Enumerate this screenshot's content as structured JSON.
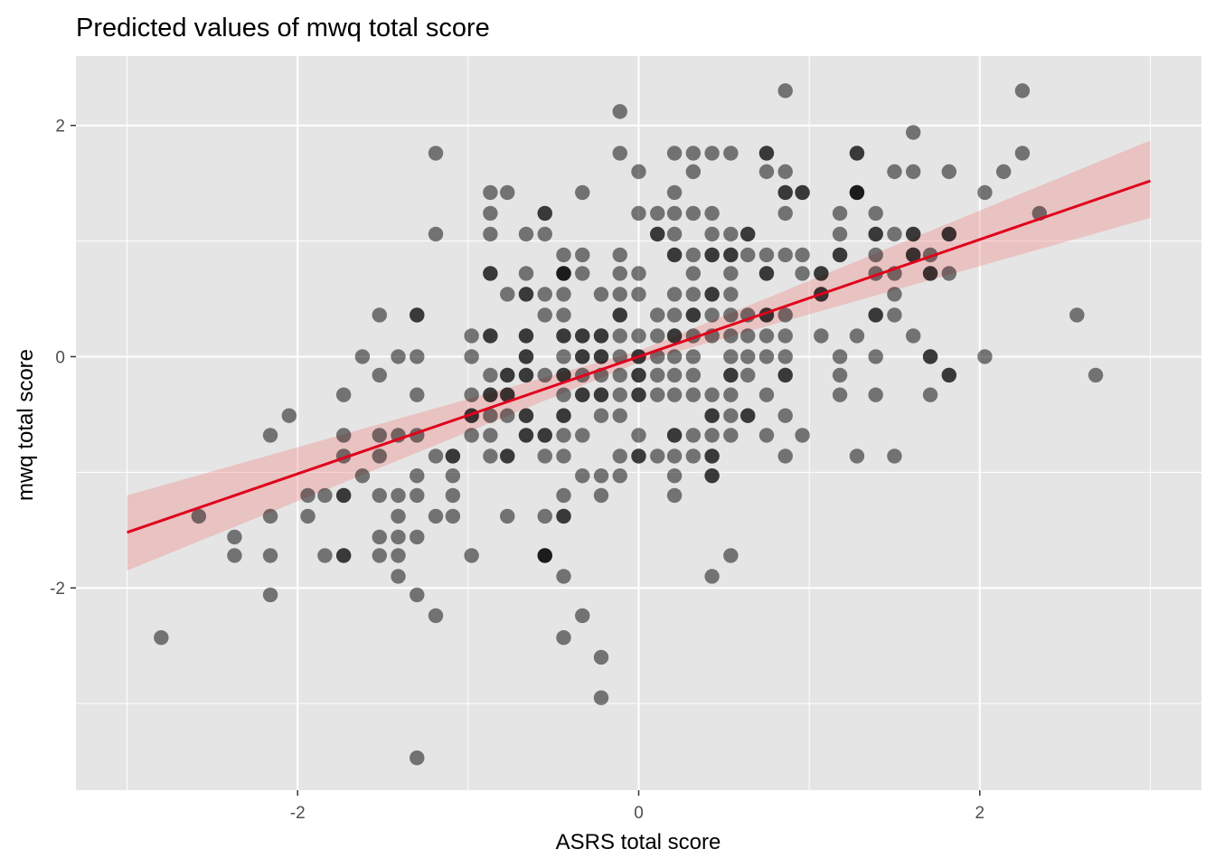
{
  "chart_data": {
    "type": "scatter",
    "title": "Predicted values of mwq total score",
    "xlabel": "ASRS total score",
    "ylabel": "mwq total score",
    "xlim": [
      -3.3,
      3.3
    ],
    "ylim": [
      -3.75,
      2.6
    ],
    "x_ticks": [
      -2,
      0,
      2
    ],
    "x_tick_labels": [
      "-2",
      "0",
      "2"
    ],
    "y_ticks": [
      -2,
      0,
      2
    ],
    "y_tick_labels": [
      "-2",
      "0",
      "2"
    ],
    "grid": true,
    "colors": {
      "panel": "#e5e5e5",
      "grid": "#ffffff",
      "point": "#000000",
      "fit_line": "#e0001b",
      "ribbon": "#f08080"
    },
    "point_alpha": 0.5,
    "points": [
      [
        -2.8,
        -2.43
      ],
      [
        -2.58,
        -1.38
      ],
      [
        -2.37,
        -1.56
      ],
      [
        -2.37,
        -1.72
      ],
      [
        -2.16,
        -0.68
      ],
      [
        -2.16,
        -1.38
      ],
      [
        -2.16,
        -1.72
      ],
      [
        -2.16,
        -2.06
      ],
      [
        -2.05,
        -0.51
      ],
      [
        -1.94,
        -1.2
      ],
      [
        -1.94,
        -1.38
      ],
      [
        -1.84,
        -1.2
      ],
      [
        -1.84,
        -1.72
      ],
      [
        -1.73,
        -0.33
      ],
      [
        -1.73,
        -0.68
      ],
      [
        -1.73,
        -0.86
      ],
      [
        -1.73,
        -1.2
      ],
      [
        -1.73,
        -1.2
      ],
      [
        -1.73,
        -1.72
      ],
      [
        -1.73,
        -1.72
      ],
      [
        -1.62,
        -1.03
      ],
      [
        -1.62,
        0.0
      ],
      [
        -1.52,
        0.36
      ],
      [
        -1.52,
        -0.16
      ],
      [
        -1.52,
        -0.68
      ],
      [
        -1.52,
        -0.86
      ],
      [
        -1.52,
        -1.2
      ],
      [
        -1.52,
        -1.56
      ],
      [
        -1.52,
        -1.72
      ],
      [
        -1.41,
        -1.2
      ],
      [
        -1.41,
        -1.56
      ],
      [
        -1.41,
        -1.72
      ],
      [
        -1.41,
        -1.38
      ],
      [
        -1.41,
        -1.9
      ],
      [
        -1.41,
        -0.68
      ],
      [
        -1.41,
        0.0
      ],
      [
        -1.3,
        0.36
      ],
      [
        -1.3,
        0.36
      ],
      [
        -1.3,
        0.0
      ],
      [
        -1.3,
        -0.33
      ],
      [
        -1.3,
        -0.68
      ],
      [
        -1.3,
        -1.03
      ],
      [
        -1.3,
        -1.2
      ],
      [
        -1.3,
        -1.56
      ],
      [
        -1.3,
        -2.06
      ],
      [
        -1.3,
        -3.47
      ],
      [
        -1.19,
        1.76
      ],
      [
        -1.19,
        1.06
      ],
      [
        -1.19,
        -0.86
      ],
      [
        -1.19,
        -1.38
      ],
      [
        -1.19,
        -2.24
      ],
      [
        -1.09,
        -0.86
      ],
      [
        -1.09,
        -0.86
      ],
      [
        -1.09,
        -1.03
      ],
      [
        -1.09,
        -1.2
      ],
      [
        -1.09,
        -1.38
      ],
      [
        -0.98,
        0.18
      ],
      [
        -0.98,
        0.0
      ],
      [
        -0.98,
        -0.33
      ],
      [
        -0.98,
        -0.51
      ],
      [
        -0.98,
        -0.51
      ],
      [
        -0.98,
        -0.68
      ],
      [
        -0.98,
        -1.72
      ],
      [
        -0.87,
        1.42
      ],
      [
        -0.87,
        1.24
      ],
      [
        -0.87,
        1.06
      ],
      [
        -0.87,
        0.72
      ],
      [
        -0.87,
        0.72
      ],
      [
        -0.87,
        0.18
      ],
      [
        -0.87,
        0.18
      ],
      [
        -0.87,
        -0.16
      ],
      [
        -0.87,
        -0.33
      ],
      [
        -0.87,
        -0.33
      ],
      [
        -0.87,
        -0.51
      ],
      [
        -0.87,
        -0.68
      ],
      [
        -0.87,
        -0.86
      ],
      [
        -0.77,
        1.42
      ],
      [
        -0.77,
        0.54
      ],
      [
        -0.77,
        -0.16
      ],
      [
        -0.77,
        -0.16
      ],
      [
        -0.77,
        -0.33
      ],
      [
        -0.77,
        -0.33
      ],
      [
        -0.77,
        -0.51
      ],
      [
        -0.77,
        -0.86
      ],
      [
        -0.77,
        -0.86
      ],
      [
        -0.77,
        -1.38
      ],
      [
        -0.66,
        0.72
      ],
      [
        -0.66,
        0.54
      ],
      [
        -0.66,
        0.54
      ],
      [
        -0.66,
        0.18
      ],
      [
        -0.66,
        0.18
      ],
      [
        -0.66,
        0.0
      ],
      [
        -0.66,
        0.0
      ],
      [
        -0.66,
        -0.16
      ],
      [
        -0.66,
        -0.16
      ],
      [
        -0.66,
        -0.51
      ],
      [
        -0.66,
        -0.51
      ],
      [
        -0.66,
        -0.68
      ],
      [
        -0.66,
        -0.68
      ],
      [
        -0.66,
        1.06
      ],
      [
        -0.55,
        1.24
      ],
      [
        -0.55,
        1.24
      ],
      [
        -0.55,
        1.06
      ],
      [
        -0.55,
        0.54
      ],
      [
        -0.55,
        0.36
      ],
      [
        -0.55,
        -0.16
      ],
      [
        -0.55,
        -0.68
      ],
      [
        -0.55,
        -0.68
      ],
      [
        -0.55,
        -0.86
      ],
      [
        -0.55,
        -1.38
      ],
      [
        -0.55,
        -1.72
      ],
      [
        -0.55,
        -1.72
      ],
      [
        -0.55,
        -1.72
      ],
      [
        -0.44,
        0.88
      ],
      [
        -0.44,
        0.72
      ],
      [
        -0.44,
        0.72
      ],
      [
        -0.44,
        0.72
      ],
      [
        -0.44,
        0.54
      ],
      [
        -0.44,
        0.36
      ],
      [
        -0.44,
        0.18
      ],
      [
        -0.44,
        0.18
      ],
      [
        -0.44,
        0.0
      ],
      [
        -0.44,
        -0.16
      ],
      [
        -0.44,
        -0.16
      ],
      [
        -0.44,
        -0.33
      ],
      [
        -0.44,
        -0.51
      ],
      [
        -0.44,
        -0.51
      ],
      [
        -0.44,
        -0.68
      ],
      [
        -0.44,
        -0.86
      ],
      [
        -0.44,
        -1.2
      ],
      [
        -0.44,
        -1.38
      ],
      [
        -0.44,
        -1.38
      ],
      [
        -0.44,
        -1.9
      ],
      [
        -0.44,
        -2.43
      ],
      [
        -0.33,
        1.42
      ],
      [
        -0.33,
        0.88
      ],
      [
        -0.33,
        0.72
      ],
      [
        -0.33,
        0.18
      ],
      [
        -0.33,
        0.18
      ],
      [
        -0.33,
        0.0
      ],
      [
        -0.33,
        0.0
      ],
      [
        -0.33,
        -0.16
      ],
      [
        -0.33,
        -0.33
      ],
      [
        -0.33,
        -0.33
      ],
      [
        -0.33,
        -0.68
      ],
      [
        -0.33,
        -1.03
      ],
      [
        -0.33,
        -2.24
      ],
      [
        -0.22,
        0.54
      ],
      [
        -0.22,
        0.18
      ],
      [
        -0.22,
        0.18
      ],
      [
        -0.22,
        0.0
      ],
      [
        -0.22,
        0.0
      ],
      [
        -0.22,
        -0.16
      ],
      [
        -0.22,
        -0.33
      ],
      [
        -0.22,
        -0.33
      ],
      [
        -0.22,
        -0.51
      ],
      [
        -0.22,
        -1.03
      ],
      [
        -0.22,
        -1.2
      ],
      [
        -0.22,
        -2.6
      ],
      [
        -0.22,
        -2.95
      ],
      [
        -0.11,
        2.12
      ],
      [
        -0.11,
        1.76
      ],
      [
        -0.11,
        0.88
      ],
      [
        -0.11,
        0.72
      ],
      [
        -0.11,
        0.54
      ],
      [
        -0.11,
        0.36
      ],
      [
        -0.11,
        0.36
      ],
      [
        -0.11,
        0.18
      ],
      [
        -0.11,
        0.0
      ],
      [
        -0.11,
        -0.16
      ],
      [
        -0.11,
        -0.33
      ],
      [
        -0.11,
        -0.51
      ],
      [
        -0.11,
        -0.86
      ],
      [
        -0.11,
        -1.03
      ],
      [
        0.0,
        1.6
      ],
      [
        0.0,
        1.24
      ],
      [
        0.0,
        0.72
      ],
      [
        0.0,
        0.54
      ],
      [
        0.0,
        0.18
      ],
      [
        0.0,
        0.0
      ],
      [
        0.0,
        0.0
      ],
      [
        0.0,
        -0.16
      ],
      [
        0.0,
        -0.16
      ],
      [
        0.0,
        -0.33
      ],
      [
        0.0,
        -0.33
      ],
      [
        0.0,
        -0.68
      ],
      [
        0.0,
        -0.86
      ],
      [
        0.0,
        -0.86
      ],
      [
        0.11,
        1.24
      ],
      [
        0.11,
        1.06
      ],
      [
        0.11,
        1.06
      ],
      [
        0.11,
        0.36
      ],
      [
        0.11,
        0.18
      ],
      [
        0.11,
        0.0
      ],
      [
        0.11,
        -0.16
      ],
      [
        0.11,
        -0.33
      ],
      [
        0.11,
        -0.86
      ],
      [
        0.21,
        1.76
      ],
      [
        0.21,
        1.42
      ],
      [
        0.21,
        1.24
      ],
      [
        0.21,
        1.06
      ],
      [
        0.21,
        0.88
      ],
      [
        0.21,
        0.88
      ],
      [
        0.21,
        0.54
      ],
      [
        0.21,
        0.36
      ],
      [
        0.21,
        0.18
      ],
      [
        0.21,
        0.18
      ],
      [
        0.21,
        0.0
      ],
      [
        0.21,
        -0.16
      ],
      [
        0.21,
        -0.33
      ],
      [
        0.21,
        -0.68
      ],
      [
        0.21,
        -0.68
      ],
      [
        0.21,
        -0.86
      ],
      [
        0.21,
        -1.03
      ],
      [
        0.21,
        -1.2
      ],
      [
        0.32,
        1.76
      ],
      [
        0.32,
        1.6
      ],
      [
        0.32,
        1.24
      ],
      [
        0.32,
        0.88
      ],
      [
        0.32,
        0.72
      ],
      [
        0.32,
        0.54
      ],
      [
        0.32,
        0.36
      ],
      [
        0.32,
        0.36
      ],
      [
        0.32,
        0.18
      ],
      [
        0.32,
        0.0
      ],
      [
        0.32,
        -0.16
      ],
      [
        0.32,
        -0.33
      ],
      [
        0.32,
        -0.68
      ],
      [
        0.32,
        -0.86
      ],
      [
        0.43,
        1.76
      ],
      [
        0.43,
        1.24
      ],
      [
        0.43,
        1.06
      ],
      [
        0.43,
        0.88
      ],
      [
        0.43,
        0.88
      ],
      [
        0.43,
        0.54
      ],
      [
        0.43,
        0.54
      ],
      [
        0.43,
        0.36
      ],
      [
        0.43,
        0.18
      ],
      [
        0.43,
        -0.33
      ],
      [
        0.43,
        -0.51
      ],
      [
        0.43,
        -0.51
      ],
      [
        0.43,
        -0.68
      ],
      [
        0.43,
        -0.86
      ],
      [
        0.43,
        -0.86
      ],
      [
        0.43,
        -1.03
      ],
      [
        0.43,
        -1.03
      ],
      [
        0.43,
        -1.9
      ],
      [
        0.54,
        1.76
      ],
      [
        0.54,
        1.06
      ],
      [
        0.54,
        0.88
      ],
      [
        0.54,
        0.88
      ],
      [
        0.54,
        0.72
      ],
      [
        0.54,
        0.54
      ],
      [
        0.54,
        0.36
      ],
      [
        0.54,
        0.18
      ],
      [
        0.54,
        0.0
      ],
      [
        0.54,
        -0.16
      ],
      [
        0.54,
        -0.16
      ],
      [
        0.54,
        -0.33
      ],
      [
        0.54,
        -0.51
      ],
      [
        0.54,
        -0.68
      ],
      [
        0.54,
        -1.72
      ],
      [
        0.64,
        1.06
      ],
      [
        0.64,
        1.06
      ],
      [
        0.64,
        0.88
      ],
      [
        0.64,
        0.36
      ],
      [
        0.64,
        0.18
      ],
      [
        0.64,
        0.0
      ],
      [
        0.64,
        -0.16
      ],
      [
        0.64,
        -0.51
      ],
      [
        0.64,
        -0.51
      ],
      [
        0.75,
        1.76
      ],
      [
        0.75,
        1.76
      ],
      [
        0.75,
        1.6
      ],
      [
        0.75,
        0.88
      ],
      [
        0.75,
        0.72
      ],
      [
        0.75,
        0.72
      ],
      [
        0.75,
        0.36
      ],
      [
        0.75,
        0.36
      ],
      [
        0.75,
        0.18
      ],
      [
        0.75,
        0.0
      ],
      [
        0.75,
        -0.33
      ],
      [
        0.75,
        -0.68
      ],
      [
        0.86,
        2.3
      ],
      [
        0.86,
        1.6
      ],
      [
        0.86,
        1.42
      ],
      [
        0.86,
        1.42
      ],
      [
        0.86,
        1.24
      ],
      [
        0.86,
        0.88
      ],
      [
        0.86,
        0.36
      ],
      [
        0.86,
        0.18
      ],
      [
        0.86,
        0.0
      ],
      [
        0.86,
        -0.16
      ],
      [
        0.86,
        -0.16
      ],
      [
        0.86,
        -0.51
      ],
      [
        0.86,
        -0.86
      ],
      [
        0.96,
        1.42
      ],
      [
        0.96,
        1.42
      ],
      [
        0.96,
        0.88
      ],
      [
        0.96,
        0.72
      ],
      [
        0.96,
        -0.68
      ],
      [
        1.07,
        0.72
      ],
      [
        1.07,
        0.72
      ],
      [
        1.07,
        0.54
      ],
      [
        1.07,
        0.54
      ],
      [
        1.07,
        0.18
      ],
      [
        1.18,
        1.24
      ],
      [
        1.18,
        1.06
      ],
      [
        1.18,
        0.88
      ],
      [
        1.18,
        0.88
      ],
      [
        1.18,
        0.0
      ],
      [
        1.18,
        -0.16
      ],
      [
        1.18,
        -0.33
      ],
      [
        1.28,
        1.76
      ],
      [
        1.28,
        1.76
      ],
      [
        1.28,
        1.42
      ],
      [
        1.28,
        1.42
      ],
      [
        1.28,
        1.42
      ],
      [
        1.28,
        0.18
      ],
      [
        1.28,
        -0.86
      ],
      [
        1.39,
        1.24
      ],
      [
        1.39,
        1.06
      ],
      [
        1.39,
        1.06
      ],
      [
        1.39,
        0.88
      ],
      [
        1.39,
        0.72
      ],
      [
        1.39,
        0.36
      ],
      [
        1.39,
        0.36
      ],
      [
        1.39,
        0.0
      ],
      [
        1.39,
        -0.33
      ],
      [
        1.5,
        1.6
      ],
      [
        1.5,
        1.06
      ],
      [
        1.5,
        0.72
      ],
      [
        1.5,
        0.54
      ],
      [
        1.5,
        0.36
      ],
      [
        1.5,
        -0.86
      ],
      [
        1.61,
        1.94
      ],
      [
        1.61,
        1.6
      ],
      [
        1.61,
        1.06
      ],
      [
        1.61,
        1.06
      ],
      [
        1.61,
        0.88
      ],
      [
        1.61,
        0.88
      ],
      [
        1.61,
        0.18
      ],
      [
        1.71,
        0.88
      ],
      [
        1.71,
        0.72
      ],
      [
        1.71,
        0.72
      ],
      [
        1.71,
        0.0
      ],
      [
        1.71,
        0.0
      ],
      [
        1.71,
        -0.33
      ],
      [
        1.82,
        1.6
      ],
      [
        1.82,
        1.06
      ],
      [
        1.82,
        1.06
      ],
      [
        1.82,
        0.72
      ],
      [
        1.82,
        -0.16
      ],
      [
        1.82,
        -0.16
      ],
      [
        2.03,
        1.42
      ],
      [
        2.03,
        0.0
      ],
      [
        2.14,
        1.6
      ],
      [
        2.25,
        2.3
      ],
      [
        2.25,
        1.76
      ],
      [
        2.35,
        1.24
      ],
      [
        2.57,
        0.36
      ],
      [
        2.68,
        -0.16
      ]
    ],
    "fit_line": [
      [
        -3.0,
        -1.52
      ],
      [
        3.0,
        1.52
      ]
    ],
    "ribbon": [
      [
        -3.0,
        -1.2,
        -1.85
      ],
      [
        0.0,
        0.05,
        -0.05
      ],
      [
        3.0,
        1.87,
        1.2
      ]
    ]
  }
}
